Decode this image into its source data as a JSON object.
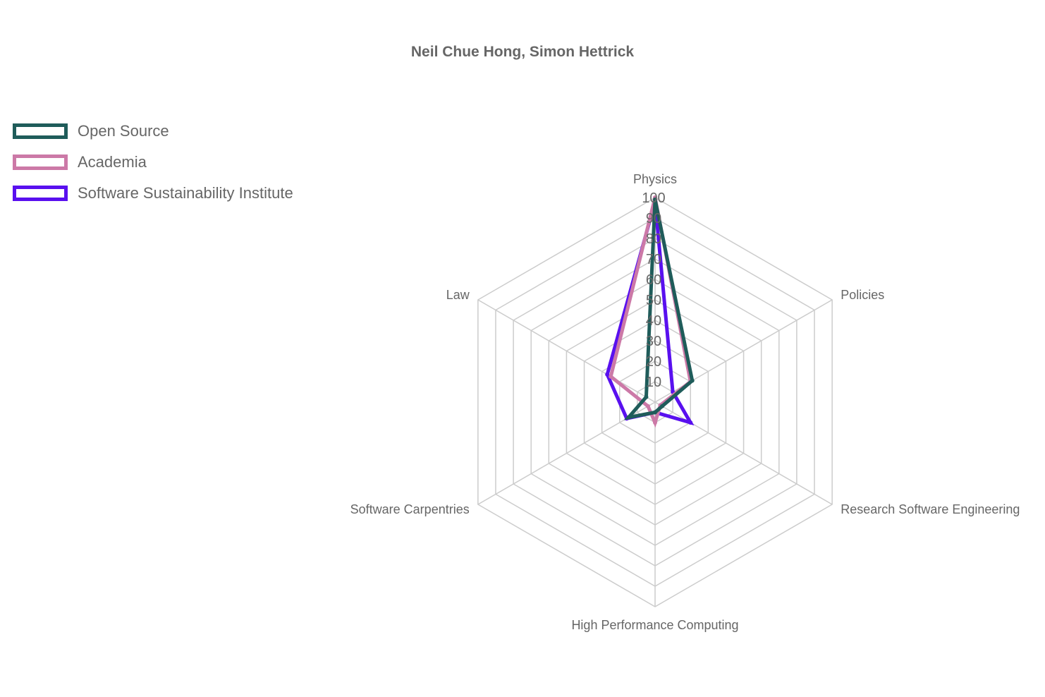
{
  "chart_data": {
    "type": "radar",
    "title": "Neil Chue Hong, Simon Hettrick",
    "categories": [
      "Physics",
      "Policies",
      "Research Software Engineering",
      "High Performance Computing",
      "Software Carpentries",
      "Law"
    ],
    "r_ticks": [
      "10",
      "20",
      "30",
      "40",
      "50",
      "60",
      "70",
      "80",
      "90",
      "100"
    ],
    "rlim": [
      0,
      100
    ],
    "grid": true,
    "legend_position": "top-left",
    "series": [
      {
        "name": "Software Sustainability Institute",
        "color": "#5910ef",
        "values": [
          98,
          10,
          20,
          5,
          16,
          27
        ]
      },
      {
        "name": "Academia",
        "color": "#cc79a7",
        "values": [
          100,
          20,
          3,
          10,
          4,
          25
        ]
      },
      {
        "name": "Open Source",
        "color": "#1f5c5a",
        "values": [
          99,
          21,
          4,
          5,
          15,
          5
        ]
      }
    ],
    "legend_order": [
      "Open Source",
      "Academia",
      "Software Sustainability Institute"
    ]
  }
}
